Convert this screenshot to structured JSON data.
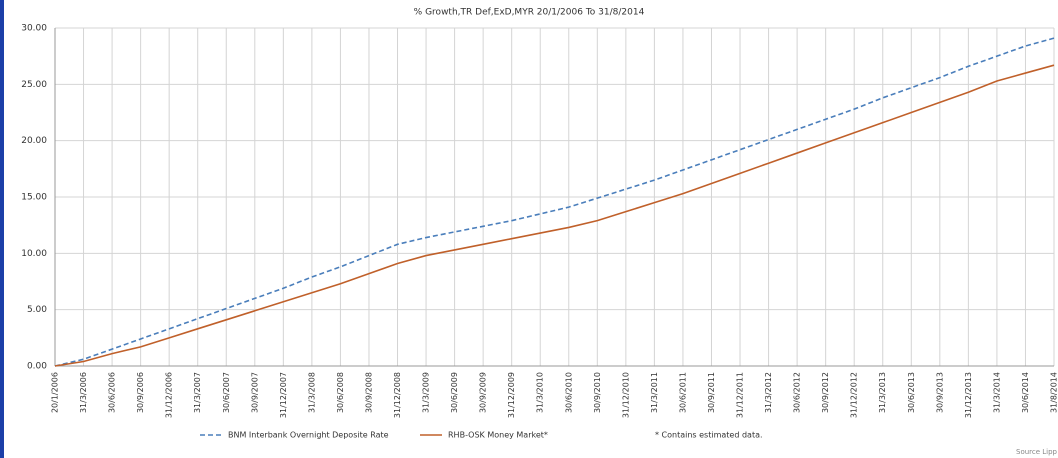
{
  "chart_data": {
    "type": "line",
    "title": "% Growth,TR Def,ExD,MYR 20/1/2006 To 31/8/2014",
    "categories": [
      "20/1/2006",
      "31/3/2006",
      "30/6/2006",
      "30/9/2006",
      "31/12/2006",
      "31/3/2007",
      "30/6/2007",
      "30/9/2007",
      "31/12/2007",
      "31/3/2008",
      "30/6/2008",
      "30/9/2008",
      "31/12/2008",
      "31/3/2009",
      "30/6/2009",
      "30/9/2009",
      "31/12/2009",
      "31/3/2010",
      "30/6/2010",
      "30/9/2010",
      "31/12/2010",
      "31/3/2011",
      "30/6/2011",
      "30/9/2011",
      "31/12/2011",
      "31/3/2012",
      "30/6/2012",
      "30/9/2012",
      "31/12/2012",
      "31/3/2013",
      "30/6/2013",
      "30/9/2013",
      "31/12/2013",
      "31/3/2014",
      "30/6/2014",
      "31/8/2014"
    ],
    "series": [
      {
        "name": "BNM Interbank Overnight Deposite Rate",
        "color": "#4a7ebb",
        "dashed": true,
        "values": [
          0,
          0.6,
          1.5,
          2.4,
          3.3,
          4.2,
          5.1,
          6.0,
          6.9,
          7.9,
          8.8,
          9.8,
          10.8,
          11.4,
          11.9,
          12.4,
          12.9,
          13.5,
          14.1,
          14.9,
          15.7,
          16.5,
          17.4,
          18.3,
          19.2,
          20.1,
          21.0,
          21.9,
          22.8,
          23.8,
          24.7,
          25.6,
          26.6,
          27.5,
          28.4,
          29.1
        ]
      },
      {
        "name": "RHB-OSK Money Market*",
        "color": "#c0602a",
        "dashed": false,
        "values": [
          0,
          0.4,
          1.1,
          1.7,
          2.5,
          3.3,
          4.1,
          4.9,
          5.7,
          6.5,
          7.3,
          8.2,
          9.1,
          9.8,
          10.3,
          10.8,
          11.3,
          11.8,
          12.3,
          12.9,
          13.7,
          14.5,
          15.3,
          16.2,
          17.1,
          18.0,
          18.9,
          19.8,
          20.7,
          21.6,
          22.5,
          23.4,
          24.3,
          25.3,
          26.0,
          26.7
        ]
      }
    ],
    "ylim": [
      0,
      30
    ],
    "yticks": [
      {
        "value": 0,
        "label": "0.00"
      },
      {
        "value": 5,
        "label": "5.00"
      },
      {
        "value": 10,
        "label": "10.00"
      },
      {
        "value": 15,
        "label": "15.00"
      },
      {
        "value": 20,
        "label": "20.00"
      },
      {
        "value": 25,
        "label": "25.00"
      },
      {
        "value": 30,
        "label": "30.00"
      }
    ],
    "grid": true,
    "note": "* Contains estimated data.",
    "source": "Source Lipp"
  }
}
